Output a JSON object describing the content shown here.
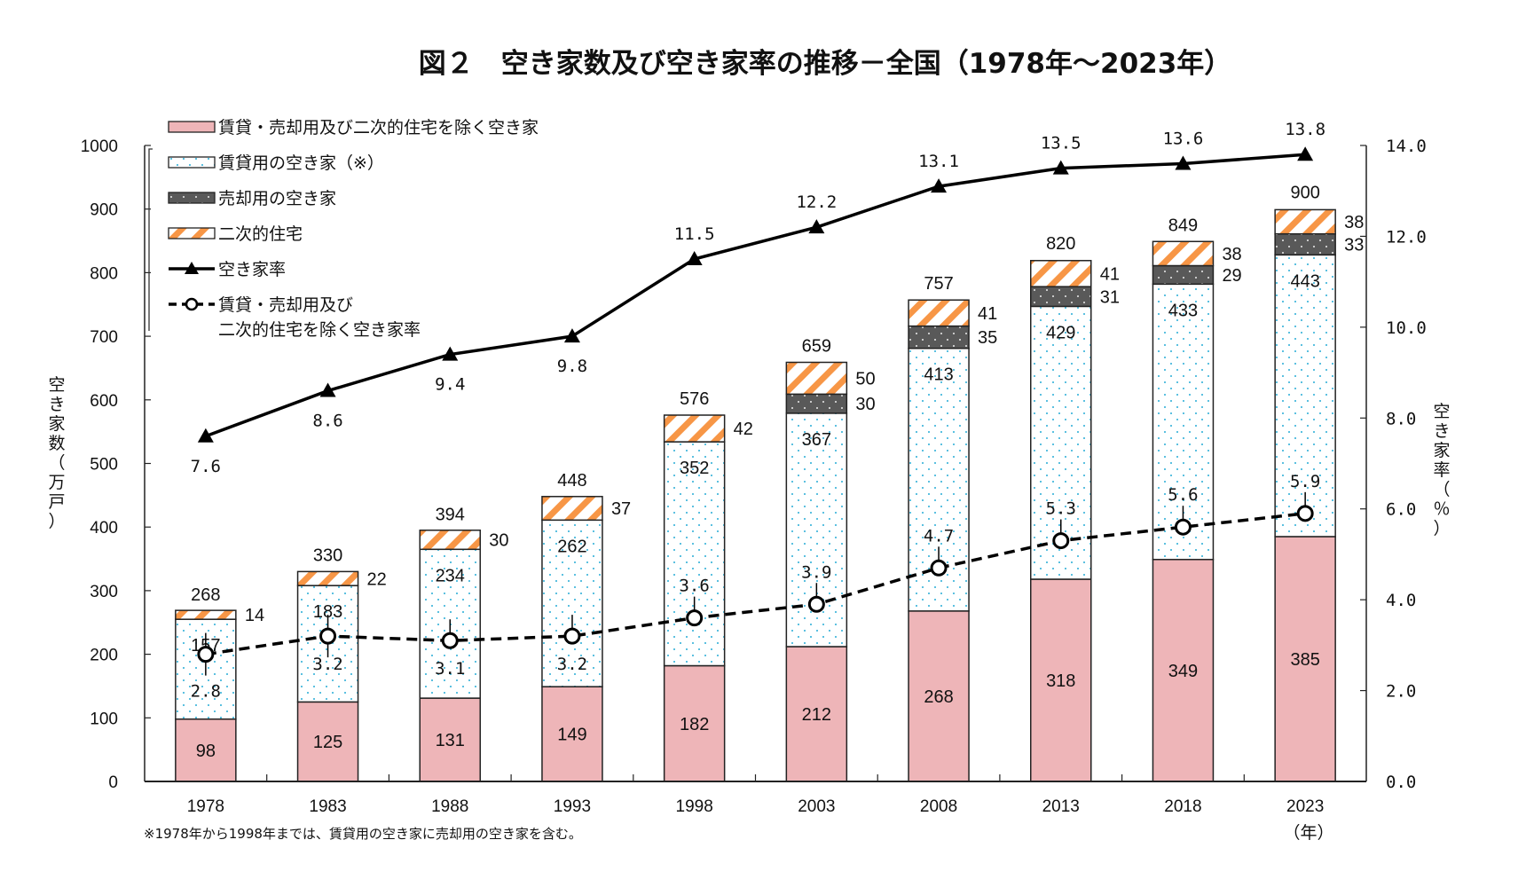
{
  "chart_data": {
    "type": "bar",
    "title": "図２　空き家数及び空き家率の推移－全国（1978年～2023年）",
    "categories": [
      "1978",
      "1983",
      "1988",
      "1993",
      "1998",
      "2003",
      "2008",
      "2013",
      "2018",
      "2023"
    ],
    "stacked": true,
    "ylabel": "空き家数（万戸）",
    "y2label": "空き家率（％）",
    "xunit": "（年）",
    "ylim": [
      0,
      1000
    ],
    "y_ticks": [
      0,
      100,
      200,
      300,
      400,
      500,
      600,
      700,
      800,
      900,
      1000
    ],
    "y2lim": [
      0,
      14
    ],
    "y2_ticks": [
      "0.0",
      "2.0",
      "4.0",
      "6.0",
      "8.0",
      "10.0",
      "12.0",
      "14.0"
    ],
    "grid": false,
    "legend_position": "top-left",
    "series": [
      {
        "name": "賃貸・売却用及び二次的住宅を除く空き家",
        "kind": "bar",
        "color": "#eeb5b8",
        "values": [
          98,
          125,
          131,
          149,
          182,
          212,
          268,
          318,
          349,
          385
        ]
      },
      {
        "name": "賃貸用の空き家（※）",
        "kind": "bar",
        "color": "#ffffff",
        "dot_color": "#5bc0e0",
        "values": [
          157,
          183,
          234,
          262,
          352,
          367,
          413,
          429,
          433,
          443
        ]
      },
      {
        "name": "売却用の空き家",
        "kind": "bar",
        "color": "#595959",
        "dot_color": "#bfbfbf",
        "values": [
          null,
          null,
          null,
          null,
          null,
          30,
          35,
          31,
          29,
          33
        ]
      },
      {
        "name": "二次的住宅",
        "kind": "bar",
        "color": "#f79646",
        "values": [
          14,
          22,
          30,
          37,
          42,
          50,
          41,
          41,
          38,
          38
        ]
      },
      {
        "name": "空き家率",
        "kind": "line",
        "axis": "right",
        "marker": "triangle",
        "color": "#000000",
        "values": [
          7.6,
          8.6,
          9.4,
          9.8,
          11.5,
          12.2,
          13.1,
          13.5,
          13.6,
          13.8
        ],
        "labels": [
          "7.6",
          "8.6",
          "9.4",
          "9.8",
          "11.5",
          "12.2",
          "13.1",
          "13.5",
          "13.6",
          "13.8"
        ]
      },
      {
        "name": "賃貸・売却用及び二次的住宅を除く空き家率",
        "legend_lines": [
          "賃貸・売却用及び",
          "二次的住宅を除く空き家率"
        ],
        "kind": "line",
        "axis": "right",
        "marker": "circle",
        "dashed": true,
        "color": "#000000",
        "values": [
          2.8,
          3.2,
          3.1,
          3.2,
          3.6,
          3.9,
          4.7,
          5.3,
          5.6,
          5.9
        ],
        "labels": [
          "2.8",
          "3.2",
          "3.1",
          "3.2",
          "3.6",
          "3.9",
          "4.7",
          "5.3",
          "5.6",
          "5.9"
        ]
      }
    ],
    "totals": [
      268,
      330,
      394,
      448,
      576,
      659,
      757,
      820,
      849,
      900
    ],
    "footnote": "※1978年から1998年までは、賃貸用の空き家に売却用の空き家を含む。"
  }
}
